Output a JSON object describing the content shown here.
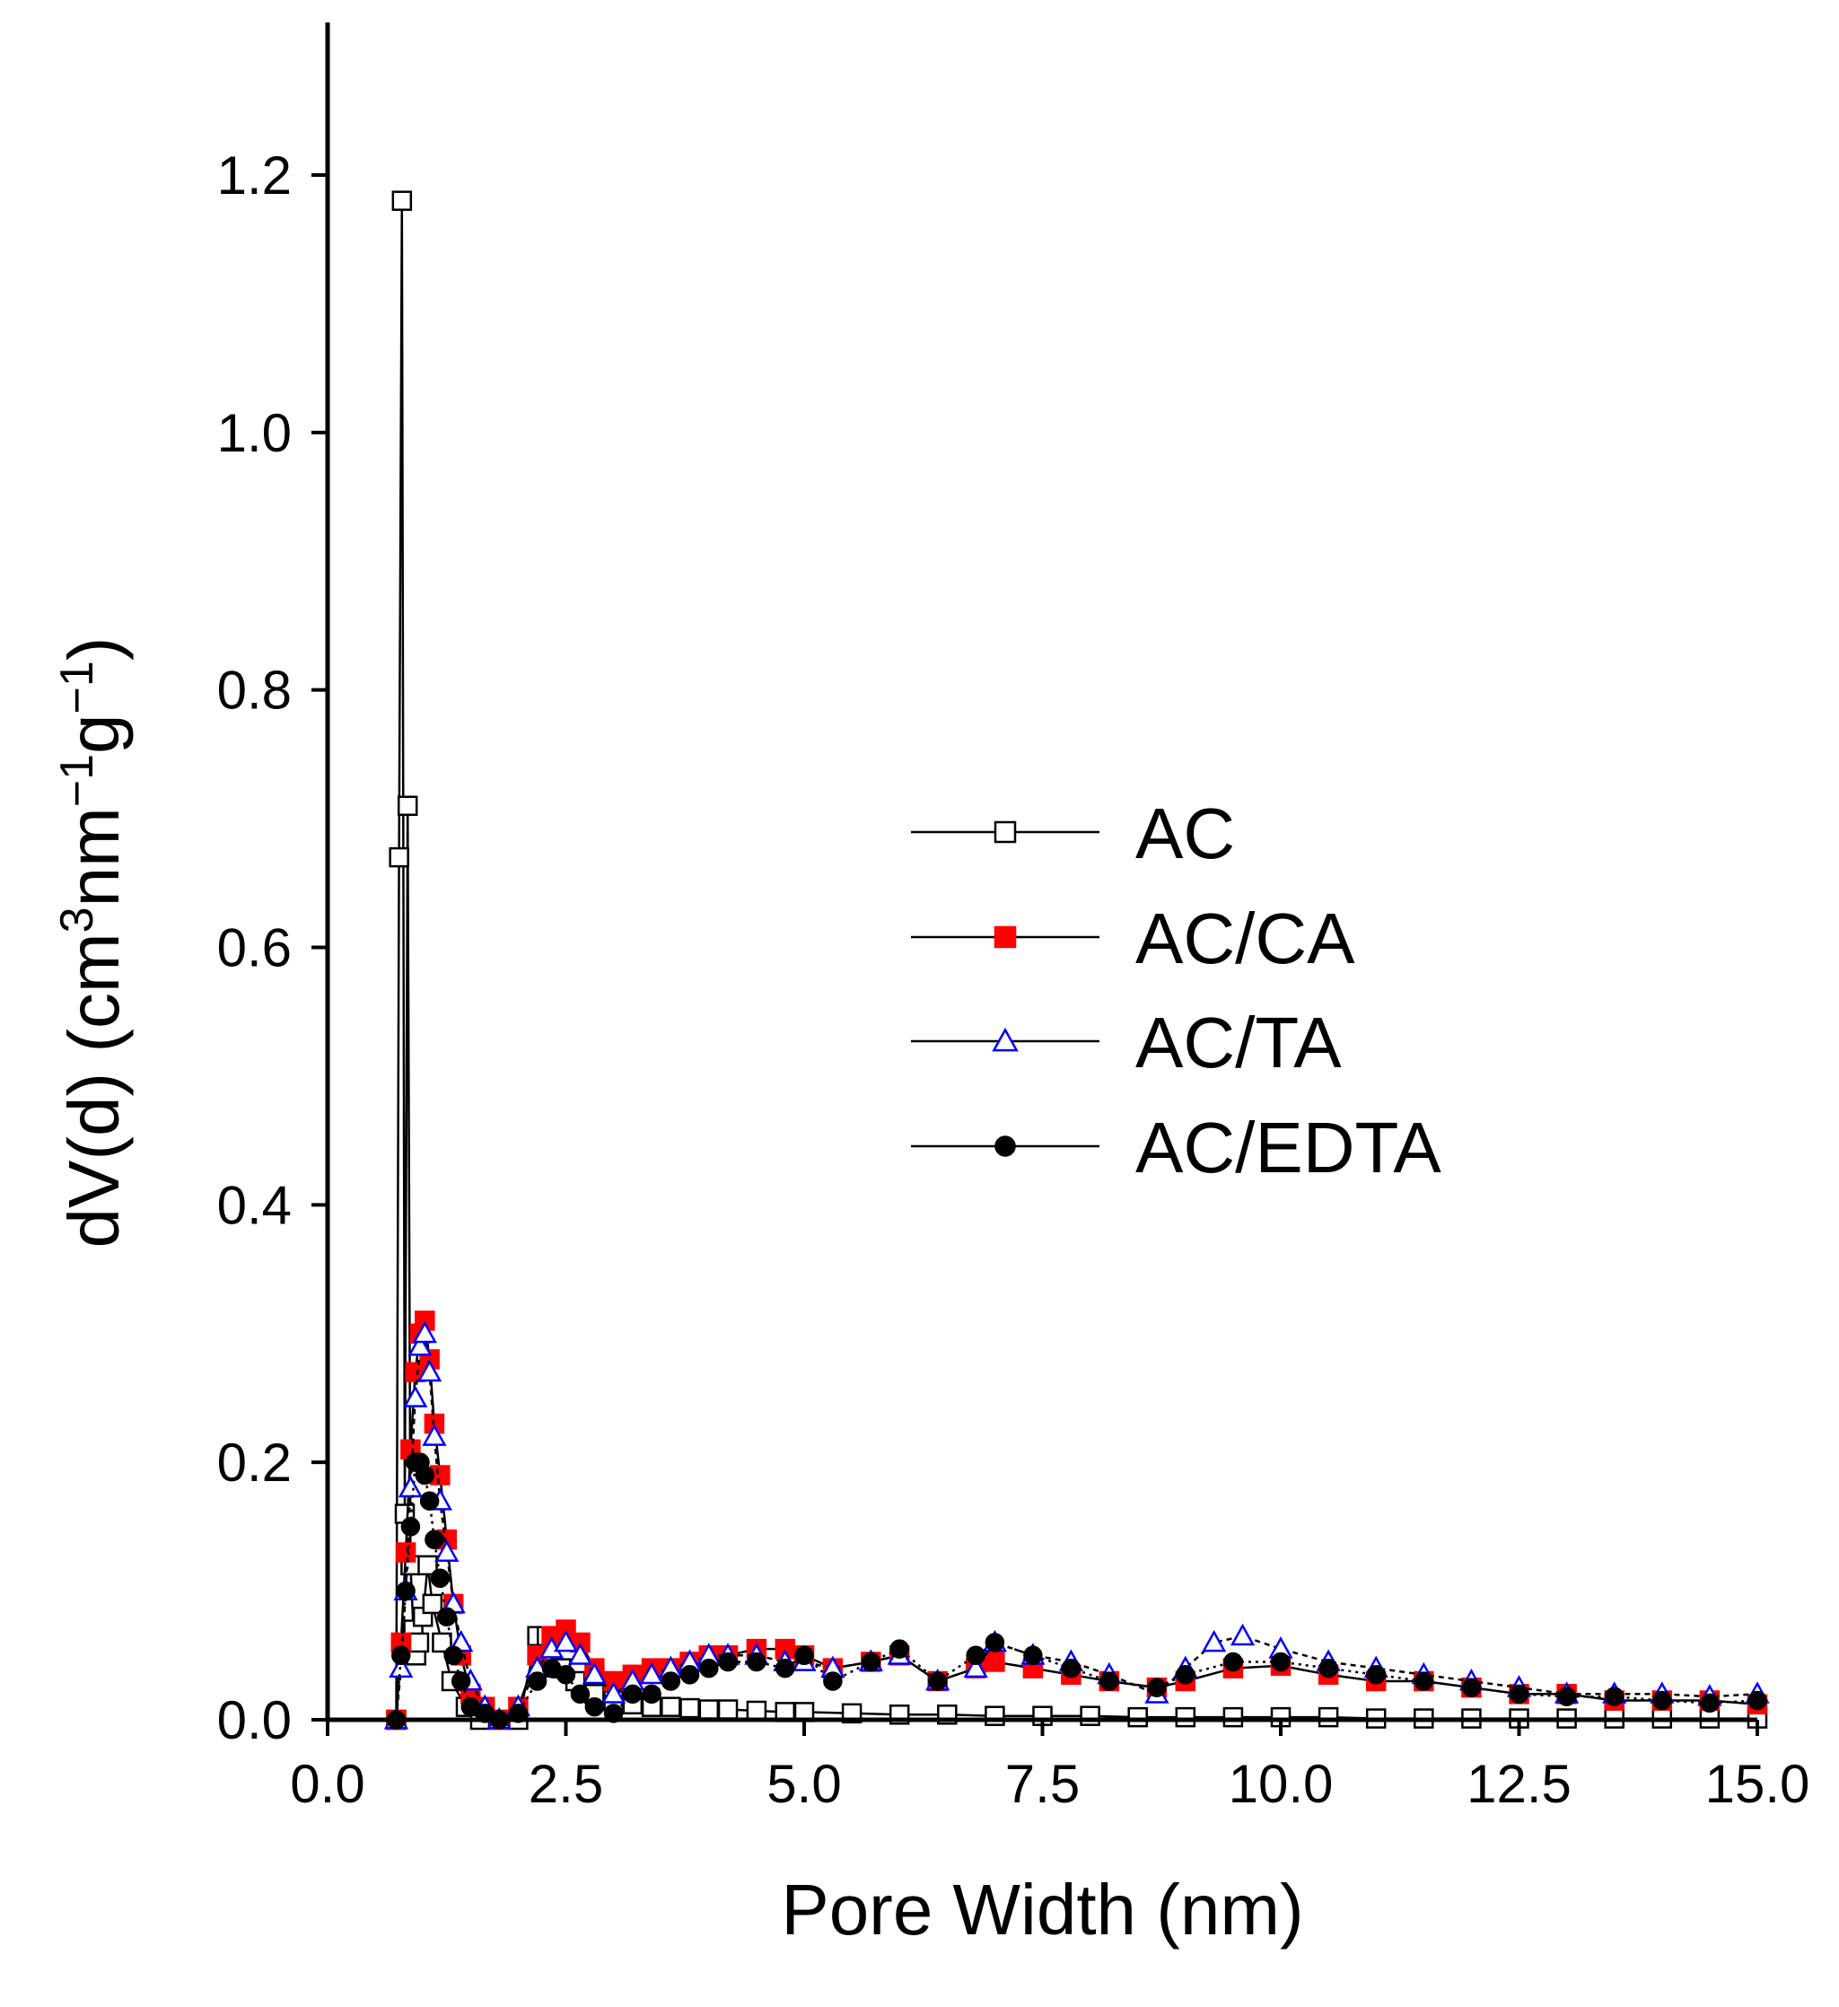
{
  "chart_data": {
    "type": "line",
    "title": "",
    "xlabel": "Pore Width (nm)",
    "ylabel_parts": {
      "main": "dV(d) (cm",
      "sup1": "3",
      "mid": "nm",
      "sup2": "−1",
      "g": "g",
      "sup3": "−1",
      "end": ")"
    },
    "xlim": [
      0,
      15
    ],
    "ylim": [
      0,
      1.3
    ],
    "xticks": [
      0,
      2.5,
      5,
      7.5,
      10,
      12.5,
      15
    ],
    "xtick_labels": [
      "0.0",
      "2.5",
      "5.0",
      "7.5",
      "10.0",
      "12.5",
      "15.0"
    ],
    "yticks": [
      0,
      0.2,
      0.4,
      0.6,
      0.8,
      1.0,
      1.2
    ],
    "ytick_labels": [
      "0.0",
      "0.2",
      "0.4",
      "0.6",
      "0.8",
      "1.0",
      "1.2"
    ],
    "grid": false,
    "legend_position": "center-right",
    "series": [
      {
        "name": "AC",
        "marker": "square-open",
        "color": "#000000",
        "fill": "#ffffff",
        "x": [
          0.72,
          0.75,
          0.78,
          0.81,
          0.84,
          0.87,
          0.9,
          0.93,
          0.96,
          1.0,
          1.05,
          1.1,
          1.2,
          1.3,
          1.45,
          1.6,
          1.8,
          2.0,
          2.2,
          2.3,
          2.45,
          2.6,
          2.8,
          3.0,
          3.2,
          3.4,
          3.6,
          3.8,
          4.0,
          4.2,
          4.5,
          4.8,
          5.0,
          5.5,
          6.0,
          6.5,
          7.0,
          7.5,
          8.0,
          8.5,
          9.0,
          9.5,
          10.0,
          10.5,
          11.0,
          11.5,
          12.0,
          12.5,
          13.0,
          13.5,
          14.0,
          14.5,
          15.0
        ],
        "y": [
          0.0,
          0.67,
          1.18,
          0.16,
          0.71,
          0.12,
          0.07,
          0.05,
          0.06,
          0.08,
          0.12,
          0.09,
          0.06,
          0.03,
          0.01,
          0.0,
          0.0,
          0.0,
          0.065,
          0.065,
          0.04,
          0.03,
          0.02,
          0.015,
          0.012,
          0.01,
          0.01,
          0.009,
          0.008,
          0.008,
          0.007,
          0.006,
          0.006,
          0.005,
          0.004,
          0.004,
          0.003,
          0.003,
          0.003,
          0.002,
          0.002,
          0.002,
          0.002,
          0.002,
          0.001,
          0.001,
          0.001,
          0.001,
          0.001,
          0.001,
          0.001,
          0.001,
          0.001
        ]
      },
      {
        "name": "AC/CA",
        "marker": "square-filled",
        "color": "#000000",
        "fill": "#ff0000",
        "x": [
          0.72,
          0.77,
          0.82,
          0.87,
          0.92,
          0.97,
          1.02,
          1.07,
          1.12,
          1.18,
          1.25,
          1.32,
          1.4,
          1.5,
          1.65,
          1.8,
          2.0,
          2.2,
          2.35,
          2.5,
          2.65,
          2.8,
          3.0,
          3.2,
          3.4,
          3.6,
          3.8,
          4.0,
          4.2,
          4.5,
          4.8,
          5.0,
          5.3,
          5.7,
          6.0,
          6.4,
          6.8,
          7.0,
          7.4,
          7.8,
          8.2,
          8.7,
          9.0,
          9.5,
          10.0,
          10.5,
          11.0,
          11.5,
          12.0,
          12.5,
          13.0,
          13.5,
          14.0,
          14.5,
          15.0
        ],
        "y": [
          0.0,
          0.06,
          0.13,
          0.21,
          0.27,
          0.3,
          0.31,
          0.28,
          0.23,
          0.19,
          0.14,
          0.09,
          0.05,
          0.02,
          0.01,
          0.0,
          0.01,
          0.05,
          0.065,
          0.07,
          0.06,
          0.04,
          0.03,
          0.035,
          0.04,
          0.04,
          0.045,
          0.05,
          0.05,
          0.055,
          0.055,
          0.05,
          0.04,
          0.045,
          0.05,
          0.03,
          0.04,
          0.045,
          0.04,
          0.035,
          0.03,
          0.025,
          0.03,
          0.04,
          0.042,
          0.035,
          0.03,
          0.03,
          0.025,
          0.02,
          0.02,
          0.015,
          0.015,
          0.015,
          0.012
        ]
      },
      {
        "name": "AC/TA",
        "marker": "triangle-open",
        "color": "#0000ff",
        "fill": "#ffffff",
        "x": [
          0.72,
          0.77,
          0.82,
          0.87,
          0.92,
          0.97,
          1.02,
          1.07,
          1.12,
          1.18,
          1.25,
          1.32,
          1.4,
          1.5,
          1.65,
          1.8,
          2.0,
          2.2,
          2.35,
          2.5,
          2.65,
          2.8,
          3.0,
          3.2,
          3.4,
          3.6,
          3.8,
          4.0,
          4.2,
          4.5,
          4.8,
          5.0,
          5.3,
          5.7,
          6.0,
          6.4,
          6.8,
          7.0,
          7.4,
          7.8,
          8.2,
          8.7,
          9.0,
          9.3,
          9.6,
          10.0,
          10.5,
          11.0,
          11.5,
          12.0,
          12.5,
          13.0,
          13.5,
          14.0,
          14.5,
          15.0
        ],
        "y": [
          0.0,
          0.04,
          0.1,
          0.18,
          0.25,
          0.29,
          0.3,
          0.27,
          0.22,
          0.17,
          0.13,
          0.09,
          0.06,
          0.03,
          0.01,
          0.0,
          0.01,
          0.04,
          0.055,
          0.06,
          0.05,
          0.035,
          0.02,
          0.03,
          0.035,
          0.04,
          0.045,
          0.05,
          0.05,
          0.05,
          0.045,
          0.045,
          0.04,
          0.045,
          0.05,
          0.03,
          0.04,
          0.06,
          0.05,
          0.045,
          0.035,
          0.02,
          0.04,
          0.06,
          0.065,
          0.055,
          0.045,
          0.04,
          0.035,
          0.03,
          0.025,
          0.02,
          0.02,
          0.02,
          0.018,
          0.02
        ]
      },
      {
        "name": "AC/EDTA",
        "marker": "circle-filled",
        "color": "#000000",
        "fill": "#000000",
        "x": [
          0.72,
          0.77,
          0.82,
          0.87,
          0.92,
          0.97,
          1.02,
          1.07,
          1.12,
          1.18,
          1.25,
          1.32,
          1.4,
          1.5,
          1.65,
          1.8,
          2.0,
          2.2,
          2.35,
          2.5,
          2.65,
          2.8,
          3.0,
          3.2,
          3.4,
          3.6,
          3.8,
          4.0,
          4.2,
          4.5,
          4.8,
          5.0,
          5.3,
          5.7,
          6.0,
          6.4,
          6.8,
          7.0,
          7.4,
          7.8,
          8.2,
          8.7,
          9.0,
          9.5,
          10.0,
          10.5,
          11.0,
          11.5,
          12.0,
          12.5,
          13.0,
          13.5,
          14.0,
          14.5,
          15.0
        ],
        "y": [
          0.0,
          0.05,
          0.1,
          0.15,
          0.2,
          0.2,
          0.19,
          0.17,
          0.14,
          0.11,
          0.08,
          0.05,
          0.03,
          0.01,
          0.005,
          0.0,
          0.005,
          0.03,
          0.04,
          0.035,
          0.02,
          0.01,
          0.005,
          0.02,
          0.02,
          0.03,
          0.035,
          0.04,
          0.045,
          0.045,
          0.04,
          0.05,
          0.03,
          0.045,
          0.055,
          0.03,
          0.05,
          0.06,
          0.05,
          0.04,
          0.03,
          0.025,
          0.035,
          0.045,
          0.045,
          0.04,
          0.035,
          0.03,
          0.025,
          0.02,
          0.018,
          0.018,
          0.015,
          0.013,
          0.015
        ]
      }
    ]
  }
}
